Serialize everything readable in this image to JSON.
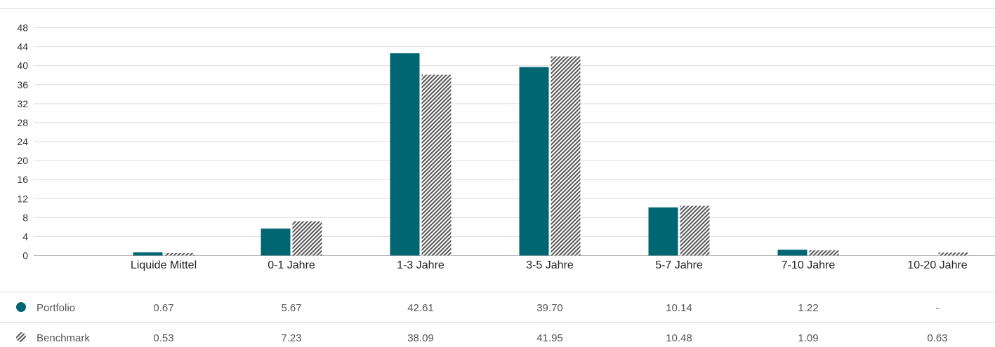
{
  "chart_data": {
    "type": "bar",
    "categories": [
      "Liquide Mittel",
      "0-1 Jahre",
      "1-3 Jahre",
      "3-5 Jahre",
      "5-7 Jahre",
      "7-10 Jahre",
      "10-20 Jahre"
    ],
    "series": [
      {
        "name": "Portfolio",
        "values": [
          0.67,
          5.67,
          42.61,
          39.7,
          10.14,
          1.22,
          null
        ],
        "labels": [
          "0.67",
          "5.67",
          "42.61",
          "39.70",
          "10.14",
          "1.22",
          "-"
        ]
      },
      {
        "name": "Benchmark",
        "values": [
          0.53,
          7.23,
          38.09,
          41.95,
          10.48,
          1.09,
          0.63
        ],
        "labels": [
          "0.53",
          "7.23",
          "38.09",
          "41.95",
          "10.48",
          "1.09",
          "0.63"
        ]
      }
    ],
    "yticks": [
      "0",
      "4",
      "8",
      "12",
      "16",
      "20",
      "24",
      "28",
      "32",
      "36",
      "40",
      "44",
      "48"
    ],
    "ylim": [
      0,
      48
    ],
    "grid": true,
    "legend": "table-below",
    "colors": {
      "portfolio": "#006672",
      "benchmark": "#555555",
      "grid": "#dddddd"
    }
  }
}
